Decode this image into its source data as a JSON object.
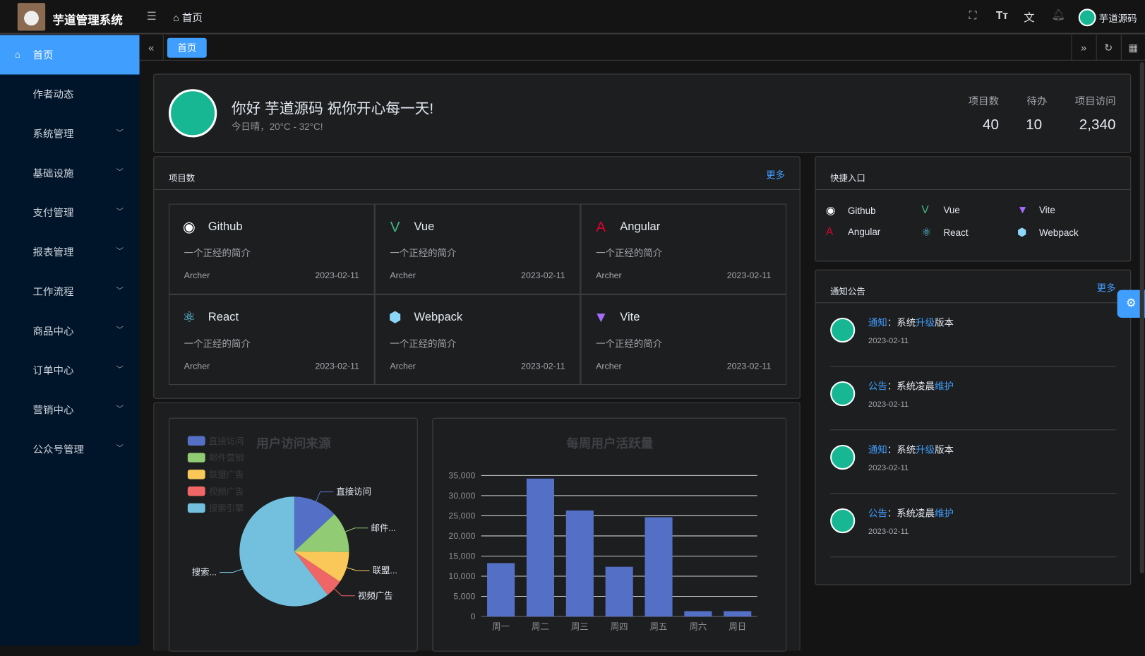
{
  "header": {
    "app_title": "芋道管理系统",
    "breadcrumb": "首页",
    "user_name": "芋道源码"
  },
  "sidebar": {
    "items": [
      {
        "label": "首页",
        "active": true
      },
      {
        "label": "作者动态"
      },
      {
        "label": "系统管理",
        "expandable": true
      },
      {
        "label": "基础设施",
        "expandable": true
      },
      {
        "label": "支付管理",
        "expandable": true
      },
      {
        "label": "报表管理",
        "expandable": true
      },
      {
        "label": "工作流程",
        "expandable": true
      },
      {
        "label": "商品中心",
        "expandable": true
      },
      {
        "label": "订单中心",
        "expandable": true
      },
      {
        "label": "营销中心",
        "expandable": true
      },
      {
        "label": "公众号管理",
        "expandable": true
      }
    ]
  },
  "tabs": [
    {
      "label": "首页"
    }
  ],
  "welcome": {
    "greeting": "你好 芋道源码 祝你开心每一天!",
    "weather": "今日晴，20°C - 32°C!",
    "stats": [
      {
        "label": "项目数",
        "value": "40"
      },
      {
        "label": "待办",
        "value": "10"
      },
      {
        "label": "项目访问",
        "value": "2,340"
      }
    ]
  },
  "projects": {
    "title": "项目数",
    "more": "更多",
    "items": [
      {
        "name": "Github",
        "icon": "github-icon",
        "color": "#ffffff",
        "desc": "一个正经的简介",
        "author": "Archer",
        "date": "2023-02-11"
      },
      {
        "name": "Vue",
        "icon": "vue-icon",
        "color": "#42b883",
        "desc": "一个正经的简介",
        "author": "Archer",
        "date": "2023-02-11"
      },
      {
        "name": "Angular",
        "icon": "angular-icon",
        "color": "#dd0031",
        "desc": "一个正经的简介",
        "author": "Archer",
        "date": "2023-02-11"
      },
      {
        "name": "React",
        "icon": "react-icon",
        "color": "#61dafb",
        "desc": "一个正经的简介",
        "author": "Archer",
        "date": "2023-02-11"
      },
      {
        "name": "Webpack",
        "icon": "webpack-icon",
        "color": "#8dd6f9",
        "desc": "一个正经的简介",
        "author": "Archer",
        "date": "2023-02-11"
      },
      {
        "name": "Vite",
        "icon": "vite-icon",
        "color": "#a66bff",
        "desc": "一个正经的简介",
        "author": "Archer",
        "date": "2023-02-11"
      }
    ]
  },
  "shortcuts": {
    "title": "快捷入口",
    "items": [
      {
        "name": "Github",
        "icon": "github-icon"
      },
      {
        "name": "Vue",
        "icon": "vue-icon"
      },
      {
        "name": "Vite",
        "icon": "vite-icon"
      },
      {
        "name": "Angular",
        "icon": "angular-icon"
      },
      {
        "name": "React",
        "icon": "react-icon"
      },
      {
        "name": "Webpack",
        "icon": "webpack-icon"
      }
    ]
  },
  "notices": {
    "title": "通知公告",
    "more": "更多",
    "items": [
      {
        "type": "通知",
        "pre": "：系统",
        "hl": "升级",
        "post": "版本",
        "date": "2023-02-11"
      },
      {
        "type": "公告",
        "pre": "：系统凌晨",
        "hl": "维护",
        "post": "",
        "date": "2023-02-11"
      },
      {
        "type": "通知",
        "pre": "：系统",
        "hl": "升级",
        "post": "版本",
        "date": "2023-02-11"
      },
      {
        "type": "公告",
        "pre": "：系统凌晨",
        "hl": "维护",
        "post": "",
        "date": "2023-02-11"
      }
    ]
  },
  "chart_data": [
    {
      "type": "pie",
      "title": "用户访问来源",
      "legend_position": "top-left",
      "slices": [
        {
          "name": "直接访问",
          "label": "直接访问",
          "value": 335,
          "color": "#5470c6"
        },
        {
          "name": "邮件营销",
          "label": "邮件...",
          "value": 310,
          "color": "#91cc75"
        },
        {
          "name": "联盟广告",
          "label": "联盟...",
          "value": 234,
          "color": "#fac858"
        },
        {
          "name": "视频广告",
          "label": "视频广告",
          "value": 135,
          "color": "#ee6666"
        },
        {
          "name": "搜索引擎",
          "label": "搜索...",
          "value": 1548,
          "color": "#73c0de"
        }
      ]
    },
    {
      "type": "bar",
      "title": "每周用户活跃量",
      "categories": [
        "周一",
        "周二",
        "周三",
        "周四",
        "周五",
        "周六",
        "周日"
      ],
      "values": [
        13253,
        34235,
        26321,
        12340,
        24643,
        1322,
        1324
      ],
      "ylim": [
        0,
        35000
      ],
      "yticks": [
        "0",
        "5,000",
        "10,000",
        "15,000",
        "20,000",
        "25,000",
        "30,000",
        "35,000"
      ],
      "color": "#5470c6",
      "grid": true
    }
  ]
}
